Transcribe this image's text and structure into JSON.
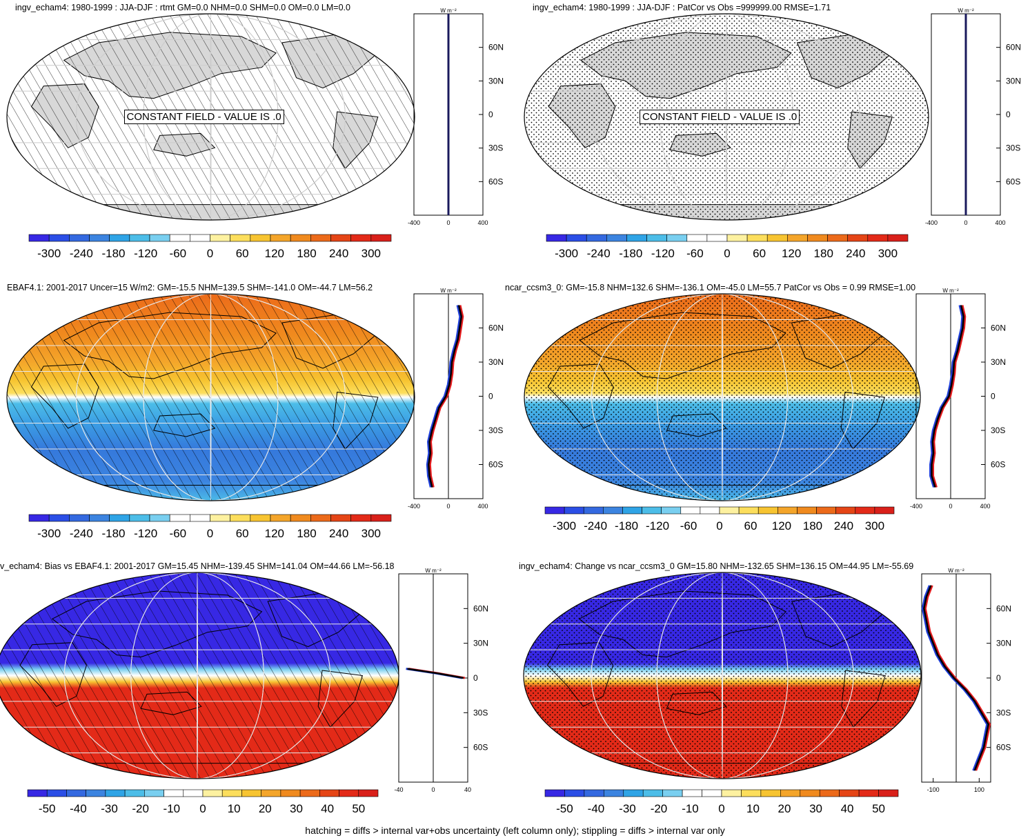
{
  "panels": [
    {
      "id": "a",
      "title": "ingv_echam4: 1980-1999 : JJA-DJF : rtmt GM=0.0 NHM=0.0 SHM=0.0 OM=0.0 LM=0.0",
      "field": "constant",
      "overlay": "hatch",
      "constant_note": "CONSTANT FIELD - VALUE IS .0",
      "profile": {
        "unit": "W m⁻²",
        "xlim": [
          -400,
          400
        ],
        "xticks": [
          "-400",
          "0",
          "400"
        ],
        "lat_ticks": [
          "60N",
          "30N",
          "0",
          "30S",
          "60S"
        ],
        "shape": "zero"
      },
      "colorbar": {
        "labels": [
          "-300",
          "-240",
          "-180",
          "-120",
          "-60",
          "0",
          "60",
          "120",
          "180",
          "240",
          "300"
        ]
      }
    },
    {
      "id": "b",
      "title": "ingv_echam4: 1980-1999 : JJA-DJF : PatCor vs Obs =999999.00 RMSE=1.71",
      "field": "constant",
      "overlay": "stipple",
      "constant_note": "CONSTANT FIELD - VALUE IS .0",
      "profile": {
        "unit": "W m⁻²",
        "xlim": [
          -400,
          400
        ],
        "xticks": [
          "-400",
          "0",
          "400"
        ],
        "lat_ticks": [
          "60N",
          "30N",
          "0",
          "30S",
          "60S"
        ],
        "shape": "zero"
      },
      "colorbar": {
        "labels": [
          "-300",
          "-240",
          "-180",
          "-120",
          "-60",
          "0",
          "60",
          "120",
          "180",
          "240",
          "300"
        ]
      }
    },
    {
      "id": "c",
      "title": "EBAF4.1: 2001-2017 Uncer=15 W/m2: GM=-15.5 NHM=139.5 SHM=-141.0 OM=-44.7 LM=56.2",
      "field": "seasonal",
      "overlay": "hatch",
      "profile": {
        "unit": "W m⁻²",
        "xlim": [
          -400,
          400
        ],
        "xticks": [
          "-400",
          "0",
          "400"
        ],
        "lat_ticks": [
          "60N",
          "30N",
          "0",
          "30S",
          "60S"
        ],
        "shape": "seasonal"
      },
      "colorbar": {
        "labels": [
          "-300",
          "-240",
          "-180",
          "-120",
          "-60",
          "0",
          "60",
          "120",
          "180",
          "240",
          "300"
        ]
      }
    },
    {
      "id": "d",
      "title": "ncar_ccsm3_0: GM=-15.8 NHM=132.6 SHM=-136.1 OM=-45.0 LM=55.7 PatCor vs Obs = 0.99 RMSE=1.00",
      "field": "seasonal",
      "overlay": "stipple",
      "profile": {
        "unit": "W m⁻²",
        "xlim": [
          -400,
          400
        ],
        "xticks": [
          "-400",
          "0",
          "400"
        ],
        "lat_ticks": [
          "60N",
          "30N",
          "0",
          "30S",
          "60S"
        ],
        "shape": "seasonal"
      },
      "colorbar": {
        "labels": [
          "-300",
          "-240",
          "-180",
          "-120",
          "-60",
          "0",
          "60",
          "120",
          "180",
          "240",
          "300"
        ]
      }
    },
    {
      "id": "e",
      "title": "v_echam4: Bias vs EBAF4.1: 2001-2017 GM=15.45 NHM=-139.45 SHM=141.04 OM=44.66 LM=-56.18",
      "field": "bias",
      "overlay": "hatch",
      "profile": {
        "unit": "W m⁻²",
        "xlim": [
          -40,
          40
        ],
        "xticks": [
          "-40",
          "0",
          "40"
        ],
        "lat_ticks": [
          "60N",
          "30N",
          "0",
          "30S",
          "60S"
        ],
        "shape": "bias"
      },
      "colorbar": {
        "labels": [
          "-50",
          "-40",
          "-30",
          "-20",
          "-10",
          "0",
          "10",
          "20",
          "30",
          "40",
          "50"
        ]
      }
    },
    {
      "id": "f",
      "title": "ingv_echam4: Change vs ncar_ccsm3_0 GM=15.80 NHM=-132.65 SHM=136.15 OM=44.95 LM=-55.69",
      "field": "bias",
      "overlay": "stipple",
      "profile": {
        "unit": "W m⁻²",
        "xlim": [
          -150,
          150
        ],
        "xticks": [
          "-100",
          "100"
        ],
        "lat_ticks": [
          "60N",
          "30N",
          "0",
          "30S",
          "60S"
        ],
        "shape": "change"
      },
      "colorbar": {
        "labels": [
          "-50",
          "-40",
          "-30",
          "-20",
          "-10",
          "0",
          "10",
          "20",
          "30",
          "40",
          "50"
        ]
      }
    }
  ],
  "colorbar_colors": [
    "#3728e4",
    "#2b4ee6",
    "#3469e0",
    "#3c84e0",
    "#2fa4e6",
    "#4cbde8",
    "#79cff0",
    "#ffffff",
    "#ffffff",
    "#fdf1a0",
    "#fcde5c",
    "#f7c431",
    "#f4a52a",
    "#f08a1e",
    "#ec6a1a",
    "#e54516",
    "#e32a18",
    "#d9201a"
  ],
  "chart_data": [
    {
      "type": "heatmap",
      "title": "ingv_echam4: 1980-1999 : JJA-DJF : rtmt GM=0.0 NHM=0.0 SHM=0.0 OM=0.0 LM=0.0",
      "value": 0.0,
      "color_range": [
        -300,
        300
      ]
    },
    {
      "type": "heatmap",
      "title": "ingv_echam4: 1980-1999 : JJA-DJF : PatCor vs Obs =999999.00 RMSE=1.71",
      "value": 0.0,
      "color_range": [
        -300,
        300
      ]
    },
    {
      "type": "heatmap",
      "title": "EBAF4.1: 2001-2017 Uncer=15 W/m2: GM=-15.5 NHM=139.5 SHM=-141.0 OM=-44.7 LM=56.2",
      "color_range": [
        -300,
        300
      ],
      "zonal_profile": {
        "lat": [
          80,
          70,
          60,
          50,
          40,
          30,
          20,
          10,
          0,
          -10,
          -20,
          -30,
          -40,
          -50,
          -60,
          -70,
          -80
        ],
        "value": [
          120,
          150,
          130,
          110,
          70,
          40,
          30,
          10,
          -30,
          -110,
          -150,
          -190,
          -220,
          -210,
          -230,
          -220,
          -190
        ]
      }
    },
    {
      "type": "heatmap",
      "title": "ncar_ccsm3_0: GM=-15.8 NHM=132.6 SHM=-136.1 OM=-45.0 LM=55.7 PatCor vs Obs = 0.99 RMSE=1.00",
      "color_range": [
        -300,
        300
      ],
      "zonal_profile": {
        "lat": [
          80,
          70,
          60,
          50,
          40,
          30,
          20,
          10,
          0,
          -10,
          -20,
          -30,
          -40,
          -50,
          -60,
          -70,
          -80
        ],
        "value": [
          120,
          150,
          140,
          110,
          80,
          40,
          30,
          10,
          -20,
          -100,
          -150,
          -190,
          -210,
          -200,
          -220,
          -220,
          -180
        ]
      }
    },
    {
      "type": "heatmap",
      "title": "v_echam4: Bias vs EBAF4.1: 2001-2017 GM=15.45 NHM=-139.45 SHM=141.04 OM=44.66 LM=-56.18",
      "color_range": [
        -50,
        50
      ],
      "zonal_profile": {
        "lat": [
          8,
          4,
          0
        ],
        "value": [
          -30,
          5,
          35
        ]
      }
    },
    {
      "type": "heatmap",
      "title": "ingv_echam4: Change vs ncar_ccsm3_0 GM=15.80 NHM=-132.65 SHM=136.15 OM=44.95 LM=-55.69",
      "color_range": [
        -50,
        50
      ],
      "zonal_profile": {
        "lat": [
          80,
          70,
          60,
          50,
          40,
          30,
          20,
          10,
          0,
          -10,
          -20,
          -30,
          -40,
          -50,
          -60,
          -70,
          -80
        ],
        "value": [
          -110,
          -130,
          -140,
          -130,
          -120,
          -100,
          -80,
          -50,
          -10,
          40,
          80,
          110,
          140,
          130,
          120,
          100,
          80
        ]
      }
    }
  ],
  "footnote": "hatching = diffs > internal var+obs uncertainty (left column only); stippling = diffs > internal var only"
}
